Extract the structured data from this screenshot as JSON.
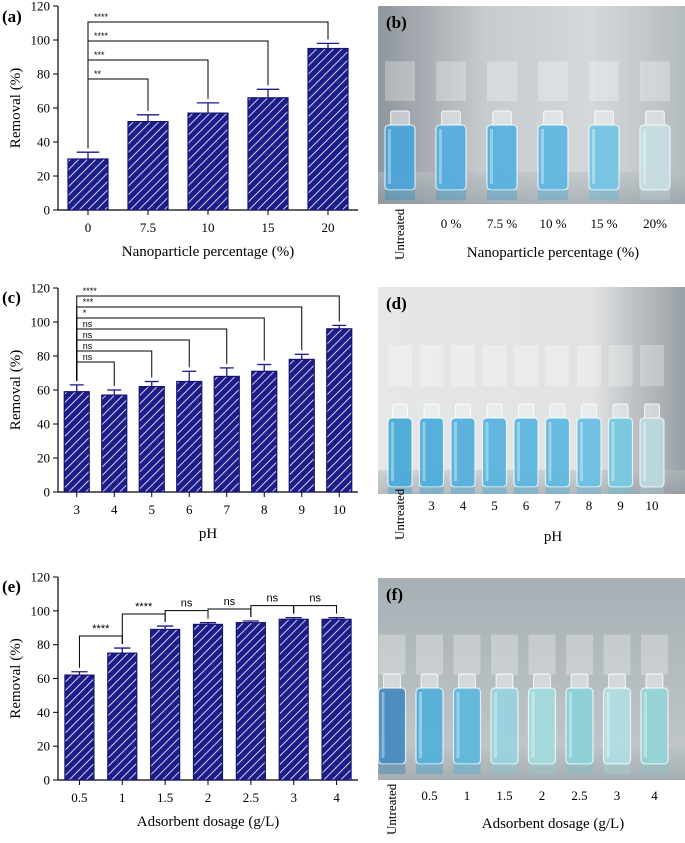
{
  "colors": {
    "bar_fill": "#1c1c8a",
    "hatch": "#ffffff",
    "error_bar": "#1a1a8c"
  },
  "chart_data": [
    {
      "id": "a",
      "panel_label": "(a)",
      "type": "bar",
      "categories": [
        "0",
        "7.5",
        "10",
        "15",
        "20"
      ],
      "values": [
        30,
        52,
        57,
        66,
        95
      ],
      "errors": [
        4,
        4,
        6,
        5,
        3
      ],
      "xlabel": "Nanoparticle percentage (%)",
      "ylabel": "Removal (%)",
      "ylim": [
        0,
        120
      ],
      "yticks": [
        "0",
        "20",
        "40",
        "60",
        "80",
        "100",
        "120"
      ],
      "comparisons": [
        {
          "from": 0,
          "to": 4,
          "label": "****"
        },
        {
          "from": 0,
          "to": 3,
          "label": "****"
        },
        {
          "from": 0,
          "to": 2,
          "label": "***"
        },
        {
          "from": 0,
          "to": 1,
          "label": "**"
        }
      ]
    },
    {
      "id": "c",
      "panel_label": "(c)",
      "type": "bar",
      "categories": [
        "3",
        "4",
        "5",
        "6",
        "7",
        "8",
        "9",
        "10"
      ],
      "values": [
        59,
        57,
        62,
        65,
        68,
        71,
        78,
        96
      ],
      "errors": [
        4,
        3,
        3,
        6,
        5,
        4,
        3,
        2
      ],
      "xlabel": "pH",
      "ylabel": "Removal (%)",
      "ylim": [
        0,
        120
      ],
      "yticks": [
        "0",
        "20",
        "40",
        "60",
        "80",
        "100",
        "120"
      ],
      "comparisons": [
        {
          "from": 0,
          "to": 7,
          "label": "****"
        },
        {
          "from": 0,
          "to": 6,
          "label": "***"
        },
        {
          "from": 0,
          "to": 5,
          "label": "*"
        },
        {
          "from": 0,
          "to": 4,
          "label": "ns"
        },
        {
          "from": 0,
          "to": 3,
          "label": "ns"
        },
        {
          "from": 0,
          "to": 2,
          "label": "ns"
        },
        {
          "from": 0,
          "to": 1,
          "label": "ns"
        }
      ]
    },
    {
      "id": "e",
      "panel_label": "(e)",
      "type": "bar",
      "categories": [
        "0.5",
        "1",
        "1.5",
        "2",
        "2.5",
        "3",
        "4"
      ],
      "values": [
        62,
        75,
        89,
        92,
        93,
        95,
        95
      ],
      "errors": [
        2,
        3,
        2,
        1,
        1,
        1,
        1
      ],
      "xlabel": "Adsorbent dosage (g/L)",
      "ylabel": "Removal (%)",
      "ylim": [
        0,
        120
      ],
      "yticks": [
        "0",
        "20",
        "40",
        "60",
        "80",
        "100",
        "120"
      ],
      "comparisons": [
        {
          "from": 0,
          "to": 1,
          "label": "****"
        },
        {
          "from": 1,
          "to": 2,
          "label": "****"
        },
        {
          "from": 2,
          "to": 3,
          "label": "ns"
        },
        {
          "from": 3,
          "to": 4,
          "label": "ns"
        },
        {
          "from": 4,
          "to": 5,
          "label": "ns"
        },
        {
          "from": 5,
          "to": 6,
          "label": "ns"
        }
      ]
    }
  ],
  "photos": [
    {
      "id": "b",
      "panel_label": "(b)",
      "untreated_label": "Untreated",
      "labels": [
        "0 %",
        "7.5 %",
        "10 %",
        "15 %",
        "20%"
      ],
      "title": "Nanoparticle percentage (%)",
      "vial_colors": [
        "#1f8fd0",
        "#2a9ad6",
        "#2f9fd8",
        "#3aa6da",
        "#52b6de",
        "#b9d6dc"
      ]
    },
    {
      "id": "d",
      "panel_label": "(d)",
      "untreated_label": "Untreated",
      "labels": [
        "3",
        "4",
        "5",
        "6",
        "7",
        "8",
        "9",
        "10"
      ],
      "title": "pH",
      "vial_colors": [
        "#1e95cf",
        "#2199d2",
        "#2a9ed5",
        "#2fa2d7",
        "#34a5d8",
        "#3aa8d9",
        "#48b0dc",
        "#56bcd9",
        "#a9cfd4"
      ]
    },
    {
      "id": "f",
      "panel_label": "(f)",
      "untreated_label": "Untreated",
      "labels": [
        "0.5",
        "1",
        "1.5",
        "2",
        "2.5",
        "3",
        "4"
      ],
      "title": "Adsorbent dosage (g/L)",
      "vial_colors": [
        "#1a6fb0",
        "#2e9dd0",
        "#3aa8d6",
        "#7fc8d8",
        "#8cd2d6",
        "#6fc7cf",
        "#9fd6da",
        "#7bc9cd"
      ]
    }
  ]
}
